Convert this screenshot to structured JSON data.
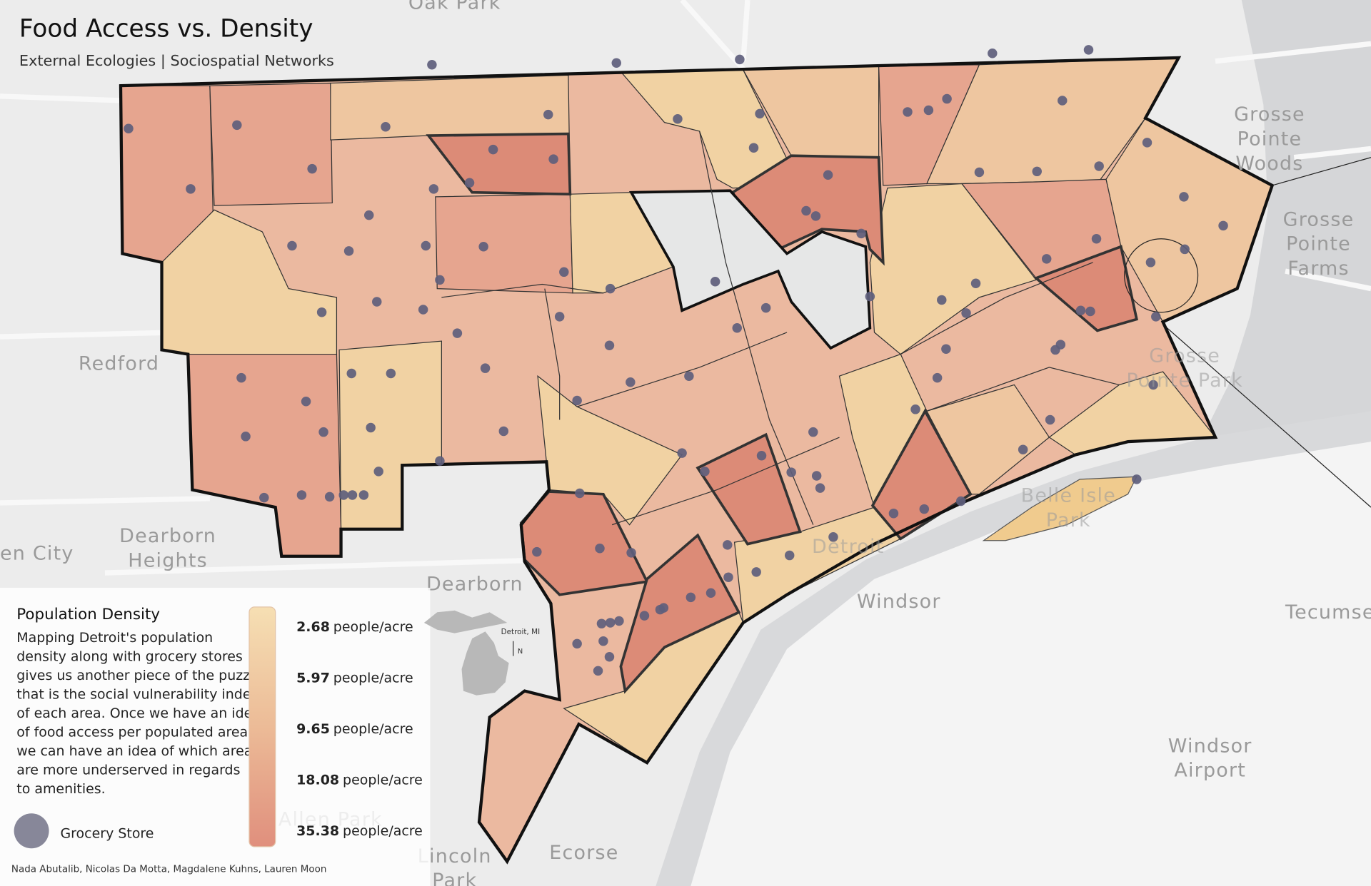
{
  "header": {
    "title": "Food Access vs. Density",
    "subtitle": "External Ecologies | Sociospatial Networks"
  },
  "places": [
    {
      "lines": [
        "Oak Park"
      ]
    },
    {
      "lines": [
        "Redford"
      ]
    },
    {
      "lines": [
        "Dearborn",
        "Heights"
      ]
    },
    {
      "lines": [
        "en City"
      ]
    },
    {
      "lines": [
        "Dearborn"
      ]
    },
    {
      "lines": [
        "Grosse",
        "Pointe",
        "Woods"
      ]
    },
    {
      "lines": [
        "Grosse",
        "Pointe",
        "Farms"
      ]
    },
    {
      "lines": [
        "Grosse",
        "Pointe Park"
      ]
    },
    {
      "lines": [
        "Detroit"
      ]
    },
    {
      "lines": [
        "Windsor"
      ]
    },
    {
      "lines": [
        "Tecumse"
      ]
    },
    {
      "lines": [
        "Windsor",
        "Airport"
      ]
    },
    {
      "lines": [
        "Belle Isle",
        "Park"
      ]
    },
    {
      "lines": [
        "Allen Park"
      ]
    },
    {
      "lines": [
        "Lincoln",
        "Park"
      ]
    },
    {
      "lines": [
        "Ecorse"
      ]
    }
  ],
  "legend": {
    "title": "Population Density",
    "description": [
      "Mapping Detroit's population",
      "density along with grocery stores",
      "gives us another piece of the puzzle",
      "that is the social vulnerability index",
      "of each area. Once we have an idea",
      "of food access per populated area,",
      "we can have an idea of which areas",
      "are more underserved in regards",
      "to amenities."
    ],
    "steps": [
      {
        "value": 2.68,
        "unit": "people/acre"
      },
      {
        "value": 5.97,
        "unit": "people/acre"
      },
      {
        "value": 9.65,
        "unit": "people/acre"
      },
      {
        "value": 18.08,
        "unit": "people/acre"
      },
      {
        "value": 35.38,
        "unit": "people/acre"
      }
    ],
    "store_label": "Grocery Store"
  },
  "inset": {
    "label": "Detroit, MI",
    "north": "N"
  },
  "credits": "Nada Abutalib, Nicolas Da Motta, Magdalene Kuhns, Lauren Moon"
}
